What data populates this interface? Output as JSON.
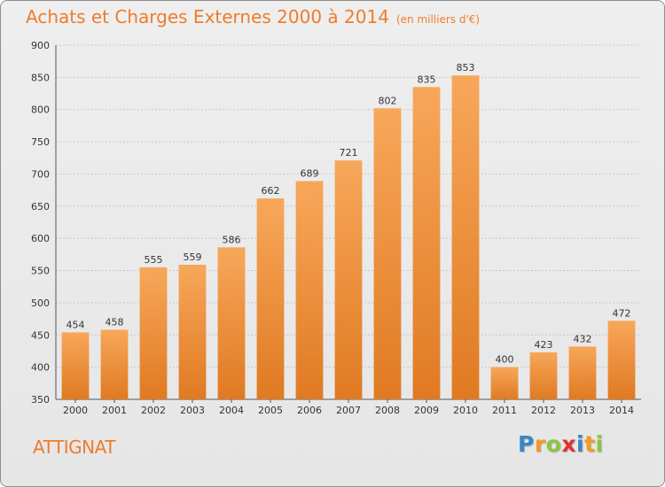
{
  "chart_data": {
    "type": "bar",
    "title": "Achats et Charges Externes 2000 à 2014",
    "subtitle": "(en milliers d'€)",
    "categories": [
      "2000",
      "2001",
      "2002",
      "2003",
      "2004",
      "2005",
      "2006",
      "2007",
      "2008",
      "2009",
      "2010",
      "2011",
      "2012",
      "2013",
      "2014"
    ],
    "values": [
      454,
      458,
      555,
      559,
      586,
      662,
      689,
      721,
      802,
      835,
      853,
      400,
      423,
      432,
      472
    ],
    "ylim": [
      350,
      900
    ],
    "yticks": [
      350,
      400,
      450,
      500,
      550,
      600,
      650,
      700,
      750,
      800,
      850,
      900
    ],
    "grid": true,
    "bar_color_top": "#f7a75a",
    "bar_color_bottom": "#e07a22",
    "xlabel": "",
    "ylabel": ""
  },
  "commune": "ATTIGNAT",
  "brand": {
    "name": "Proxiti",
    "letters": [
      {
        "char": "P",
        "color": "#3a86c8"
      },
      {
        "char": "r",
        "color": "#f39a1e"
      },
      {
        "char": "o",
        "color": "#8cc63e"
      },
      {
        "char": "x",
        "color": "#e2312f"
      },
      {
        "char": "i",
        "color": "#3a86c8"
      },
      {
        "char": "t",
        "color": "#f39a1e"
      },
      {
        "char": "i",
        "color": "#8cc63e"
      }
    ]
  },
  "colors": {
    "accent": "#ef7c2a",
    "frame_bg": "#eeeeee"
  }
}
